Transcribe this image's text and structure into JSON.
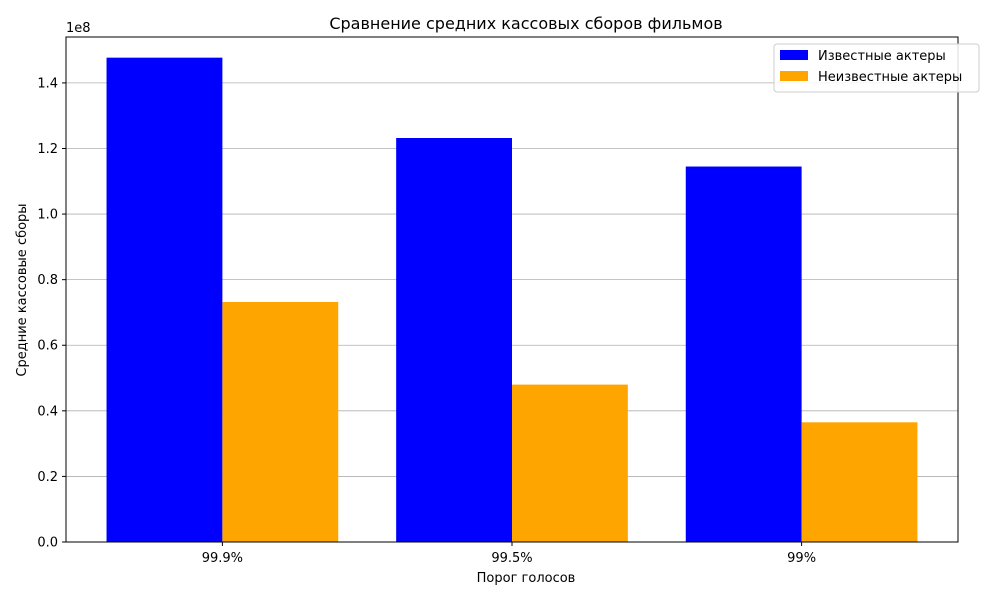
{
  "chart_data": {
    "type": "bar",
    "title": "Сравнение средних кассовых сборов фильмов",
    "xlabel": "Порог голосов",
    "ylabel": "Средние кассовые сборы",
    "y_offset_text": "1e8",
    "categories": [
      "99.9%",
      "99.5%",
      "99%"
    ],
    "series": [
      {
        "name": "Известные актеры",
        "color": "#0000ff",
        "values": [
          147700000,
          123200000,
          114500000
        ]
      },
      {
        "name": "Неизвестные актеры",
        "color": "#ffa500",
        "values": [
          73200000,
          48000000,
          36500000
        ]
      }
    ],
    "ylim": [
      0,
      154000000
    ],
    "y_ticks": [
      0,
      20000000,
      40000000,
      60000000,
      80000000,
      100000000,
      120000000,
      140000000
    ],
    "y_tick_labels": [
      "0.0",
      "0.2",
      "0.4",
      "0.6",
      "0.8",
      "1.0",
      "1.2",
      "1.4"
    ],
    "grid": "y",
    "legend_position": "top-right"
  }
}
